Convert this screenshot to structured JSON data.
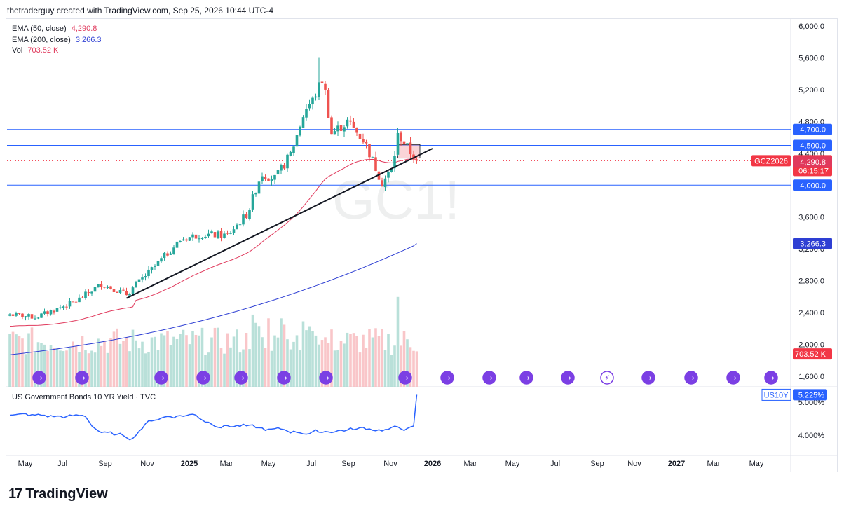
{
  "header": {
    "text": "thetraderguy created with TradingView.com, Sep 25, 2026 10:44 UTC-4"
  },
  "legend": {
    "rows": [
      {
        "name": "EMA (50, close)",
        "value": "4,290.8",
        "color": "#e0395c"
      },
      {
        "name": "EMA (200, close)",
        "value": "3,266.3",
        "color": "#2e3fd3"
      },
      {
        "name": "Vol",
        "value": "703.52 K",
        "color": "#e0395c"
      }
    ]
  },
  "watermark": "GC1!",
  "subpane_legend": "US Government Bonds 10 YR Yield · TVC",
  "brand": "TradingView",
  "price_axis": {
    "ticks": [
      "6,000.0",
      "5,600.0",
      "5,200.0",
      "4,800.0",
      "4,400.0",
      "3,600.0",
      "3,200.0",
      "2,800.0",
      "2,400.0",
      "2,000.0",
      "1,600.0"
    ],
    "hidden_ticks": [
      "4,000.0"
    ],
    "badges": [
      {
        "label": "4,700.0",
        "price": 4700,
        "bg": "#2962ff",
        "fg": "#ffffff"
      },
      {
        "label": "4,500.0",
        "price": 4500,
        "bg": "#2962ff",
        "fg": "#ffffff"
      },
      {
        "label": "4,306.6",
        "price": 4306.6,
        "bg": "#f23645",
        "fg": "#ffffff",
        "side_label": "GCZ2026",
        "countdown": "06:15:17"
      },
      {
        "label": "4,290.8",
        "price": 4290.8,
        "bg": "#e0395c",
        "fg": "#ffffff"
      },
      {
        "label": "4,000.0",
        "price": 4000,
        "bg": "#2962ff",
        "fg": "#ffffff"
      },
      {
        "label": "3,266.3",
        "price": 3266.3,
        "bg": "#2e3fd3",
        "fg": "#ffffff"
      },
      {
        "label": "703.52 K",
        "price": 1880,
        "bg": "#f23645",
        "fg": "#ffffff"
      }
    ]
  },
  "sub_axis": {
    "ticks": [
      "5.000%",
      "4.000%"
    ],
    "badge": {
      "symbol": "US10Y",
      "value": "5.225%",
      "color": "#2962ff"
    }
  },
  "time_axis": {
    "labels": [
      {
        "text": "May",
        "bold": false
      },
      {
        "text": "Jul",
        "bold": false
      },
      {
        "text": "Sep",
        "bold": false
      },
      {
        "text": "Nov",
        "bold": false
      },
      {
        "text": "2025",
        "bold": true
      },
      {
        "text": "Mar",
        "bold": false
      },
      {
        "text": "May",
        "bold": false
      },
      {
        "text": "Jul",
        "bold": false
      },
      {
        "text": "Sep",
        "bold": false
      },
      {
        "text": "Nov",
        "bold": false
      },
      {
        "text": "2026",
        "bold": true
      },
      {
        "text": "Mar",
        "bold": false
      },
      {
        "text": "May",
        "bold": false
      },
      {
        "text": "Jul",
        "bold": false
      },
      {
        "text": "Sep",
        "bold": false
      },
      {
        "text": "Nov",
        "bold": false
      },
      {
        "text": "2027",
        "bold": true
      },
      {
        "text": "Mar",
        "bold": false
      },
      {
        "text": "May",
        "bold": false
      }
    ]
  },
  "chart_data": {
    "type": "candlestick",
    "symbol": "GC1!",
    "interval": "weekly",
    "ylim": [
      1500,
      6100
    ],
    "horizontal_levels": [
      4700,
      4500,
      4000
    ],
    "trendline": [
      [
        "2024-12-20",
        2580
      ],
      [
        "2026-10-30",
        4460
      ]
    ],
    "rectangle": {
      "x0": "2026-08-14",
      "x1": "2026-10-02",
      "y0": 4340,
      "y1": 4510
    },
    "current_price": 4306.6,
    "key_points": [
      {
        "date": "2024-04",
        "close": 2400
      },
      {
        "date": "2024-12",
        "close": 2600
      },
      {
        "date": "2025-04",
        "close": 3300
      },
      {
        "date": "2025-10",
        "close": 4100
      },
      {
        "date": "2026-01",
        "close": 4900
      },
      {
        "date": "2026-02",
        "high": 5600
      },
      {
        "date": "2026-03",
        "close": 5350
      },
      {
        "date": "2026-05",
        "close": 4650
      },
      {
        "date": "2026-07",
        "low": 3950
      },
      {
        "date": "2026-08",
        "high": 4750
      },
      {
        "date": "2026-09",
        "close": 4306.6
      }
    ],
    "ema50_last": 4290.8,
    "ema200_last": 3266.3,
    "volume_last": "703.52 K",
    "us10y_last": 5.225,
    "us10y_ylim": [
      3.5,
      5.4
    ]
  }
}
